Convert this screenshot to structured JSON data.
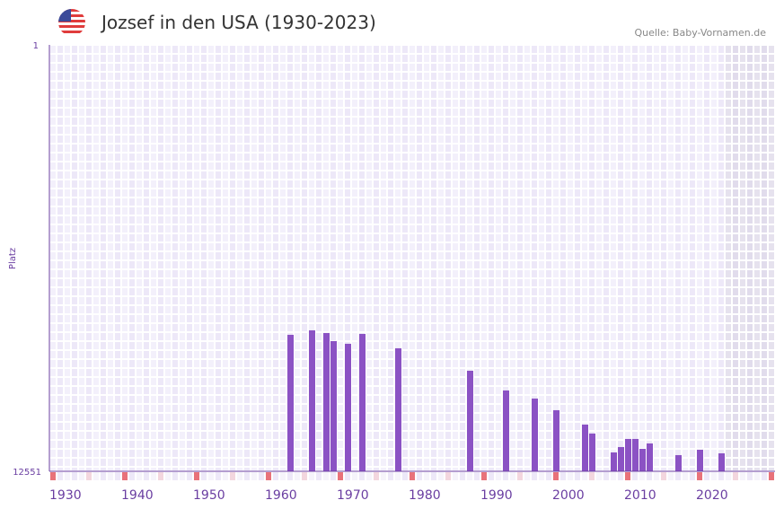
{
  "header": {
    "title": "Jozsef in den USA (1930-2023)",
    "source": "Quelle: Baby-Vornamen.de",
    "flag_icon": "usa-flag-icon"
  },
  "chart_data": {
    "type": "bar",
    "title": "Jozsef in den USA (1930-2023)",
    "xlabel": "",
    "ylabel": "Platz",
    "x_range": [
      1930,
      2030
    ],
    "ylim": [
      1,
      12551
    ],
    "y_inverted": true,
    "y_ticks": [
      "1",
      "12551"
    ],
    "x_ticks": [
      "1930",
      "1940",
      "1950",
      "1960",
      "1970",
      "1980",
      "1990",
      "2000",
      "2010",
      "2020"
    ],
    "future_shaded_from": 2024,
    "grid": true,
    "colors": {
      "bar": "#8b52c4",
      "decade_marker": "#e8727a",
      "half_decade_marker": "#f3d6de",
      "axis": "#6a3ea1"
    },
    "years": [
      1963,
      1966,
      1968,
      1969,
      1971,
      1973,
      1978,
      1988,
      1993,
      1997,
      2000,
      2004,
      2005,
      2008,
      2009,
      2010,
      2011,
      2012,
      2013,
      2017,
      2020,
      2023
    ],
    "values": [
      8534,
      8402,
      8481,
      8719,
      8798,
      8508,
      8930,
      9591,
      10172,
      10410,
      10753,
      11176,
      11440,
      11995,
      11837,
      11599,
      11599,
      11890,
      11731,
      12075,
      11916,
      12022
    ]
  }
}
